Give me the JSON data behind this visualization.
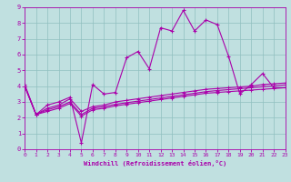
{
  "xlabel": "Windchill (Refroidissement éolien,°C)",
  "xlim": [
    0,
    23
  ],
  "ylim": [
    0,
    9
  ],
  "xticks": [
    0,
    1,
    2,
    3,
    4,
    5,
    6,
    7,
    8,
    9,
    10,
    11,
    12,
    13,
    14,
    15,
    16,
    17,
    18,
    19,
    20,
    21,
    22,
    23
  ],
  "yticks": [
    0,
    1,
    2,
    3,
    4,
    5,
    6,
    7,
    8,
    9
  ],
  "background_color": "#c0e0e0",
  "line_color": "#aa00aa",
  "grid_color": "#90c0c0",
  "line1_x": [
    0,
    1,
    2,
    3,
    4,
    5,
    6,
    7,
    8,
    9,
    10,
    11,
    12,
    13,
    14,
    15,
    16,
    17,
    18,
    19,
    20,
    21,
    22,
    23
  ],
  "line1_y": [
    4.1,
    2.2,
    2.8,
    3.0,
    3.3,
    0.4,
    4.1,
    3.5,
    3.6,
    5.8,
    6.2,
    5.1,
    7.7,
    7.5,
    8.8,
    7.5,
    8.2,
    7.9,
    5.9,
    3.5,
    4.1,
    4.8,
    3.9,
    3.9
  ],
  "line2_x": [
    0,
    1,
    2,
    3,
    4,
    5,
    6,
    7,
    8,
    9,
    10,
    11,
    12,
    13,
    14,
    15,
    16,
    17,
    18,
    19,
    20,
    21,
    22,
    23
  ],
  "line2_y": [
    4.0,
    2.2,
    2.6,
    2.8,
    3.2,
    2.4,
    2.7,
    2.8,
    3.0,
    3.1,
    3.2,
    3.3,
    3.4,
    3.5,
    3.6,
    3.7,
    3.8,
    3.85,
    3.9,
    3.95,
    4.0,
    4.1,
    4.15,
    4.2
  ],
  "line3_x": [
    0,
    1,
    2,
    3,
    4,
    5,
    6,
    7,
    8,
    9,
    10,
    11,
    12,
    13,
    14,
    15,
    16,
    17,
    18,
    19,
    20,
    21,
    22,
    23
  ],
  "line3_y": [
    4.0,
    2.2,
    2.5,
    2.7,
    3.0,
    2.2,
    2.6,
    2.7,
    2.85,
    2.95,
    3.05,
    3.15,
    3.25,
    3.35,
    3.45,
    3.55,
    3.65,
    3.72,
    3.78,
    3.84,
    3.9,
    3.96,
    4.02,
    4.08
  ],
  "line4_x": [
    0,
    1,
    2,
    3,
    4,
    5,
    6,
    7,
    8,
    9,
    10,
    11,
    12,
    13,
    14,
    15,
    16,
    17,
    18,
    19,
    20,
    21,
    22,
    23
  ],
  "line4_y": [
    4.0,
    2.2,
    2.4,
    2.6,
    2.9,
    2.1,
    2.5,
    2.6,
    2.75,
    2.85,
    2.95,
    3.05,
    3.15,
    3.25,
    3.35,
    3.45,
    3.55,
    3.6,
    3.65,
    3.7,
    3.75,
    3.8,
    3.85,
    3.9
  ]
}
